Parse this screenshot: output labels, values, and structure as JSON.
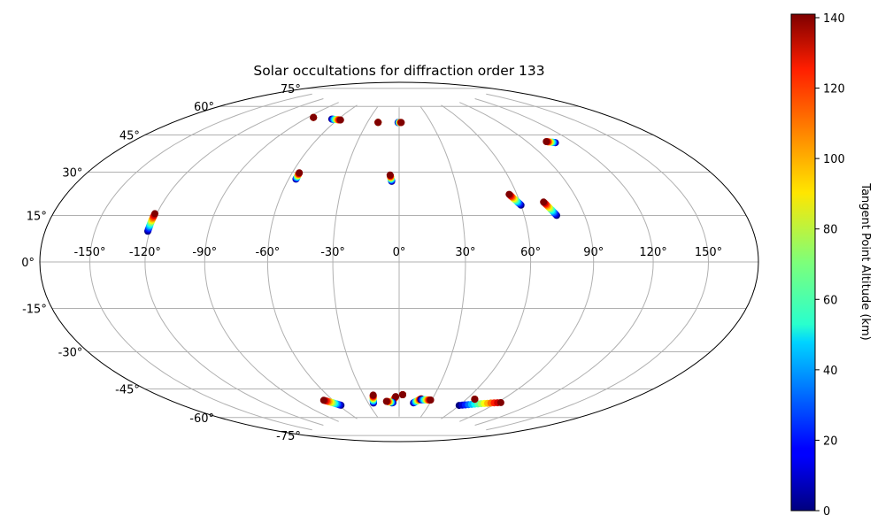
{
  "chart_data": {
    "type": "scatter",
    "projection": "hammer",
    "title": "Solar occultations for diffraction order 133",
    "xlabel": "",
    "ylabel": "",
    "lon_ticks": [
      "-150°",
      "-120°",
      "-90°",
      "-60°",
      "-30°",
      "0°",
      "30°",
      "60°",
      "90°",
      "120°",
      "150°"
    ],
    "lon_values": [
      -150,
      -120,
      -90,
      -60,
      -30,
      0,
      30,
      60,
      90,
      120,
      150
    ],
    "lat_ticks": [
      "75°",
      "60°",
      "45°",
      "30°",
      "15°",
      "0°",
      "-15°",
      "-30°",
      "-45°",
      "-60°",
      "-75°"
    ],
    "lat_values": [
      75,
      60,
      45,
      30,
      15,
      0,
      -15,
      -30,
      -45,
      -60,
      -75
    ],
    "grid": true,
    "colorbar": {
      "label": "Tangent Point Altitude (km)",
      "range": [
        0,
        141
      ],
      "ticks": [
        "0",
        "20",
        "40",
        "60",
        "80",
        "100",
        "120",
        "140"
      ],
      "tick_values": [
        0,
        20,
        40,
        60,
        80,
        100,
        120,
        140
      ],
      "colormap": "jet"
    },
    "tracks": [
      {
        "lon0": -121,
        "lat0": 12,
        "lon1": -121,
        "lat1": 19
      },
      {
        "lon0": -56,
        "lat0": 37,
        "lon1": -56,
        "lat1": 40
      },
      {
        "lon0": -4,
        "lat0": 37,
        "lon1": -5,
        "lat1": 40
      },
      {
        "lon0": 60,
        "lat0": 25,
        "lon1": 56,
        "lat1": 30
      },
      {
        "lon0": 76,
        "lat0": 20,
        "lon1": 72,
        "lat1": 26
      },
      {
        "lon0": 108,
        "lat0": 51,
        "lon1": 103,
        "lat1": 52
      },
      {
        "lon0": -66,
        "lat0": 66.6,
        "lon1": -57,
        "lat1": 66.6
      },
      {
        "lon0": -20,
        "lat0": 66.5,
        "lon1": -20,
        "lat1": 66.5
      },
      {
        "lon0": -1,
        "lat0": 66.6,
        "lon1": 2,
        "lat1": 66.6
      },
      {
        "lon0": -85,
        "lat0": 66.3,
        "lon1": -85,
        "lat1": 66.3
      },
      {
        "lon0": -58,
        "lat0": -67.3,
        "lon1": -68,
        "lat1": -64
      },
      {
        "lon0": -25,
        "lat0": -67.2,
        "lon1": -22,
        "lat1": -63
      },
      {
        "lon0": -7,
        "lat0": -67.4,
        "lon1": -3,
        "lat1": -64
      },
      {
        "lon0": -6,
        "lat0": -67.2,
        "lon1": -12,
        "lat1": -66.5
      },
      {
        "lon0": 3,
        "lat0": -63,
        "lon1": 3,
        "lat1": -63
      },
      {
        "lon0": 14,
        "lat0": -67.3,
        "lon1": 20,
        "lat1": -65
      },
      {
        "lon0": 20,
        "lat0": -65.5,
        "lon1": 29,
        "lat1": -65.5
      },
      {
        "lon0": 60,
        "lat0": -67.3,
        "lon1": 93,
        "lat1": -63.5
      },
      {
        "lon0": 67,
        "lat0": -63.5,
        "lon1": 67,
        "lat1": -63.5
      }
    ]
  }
}
